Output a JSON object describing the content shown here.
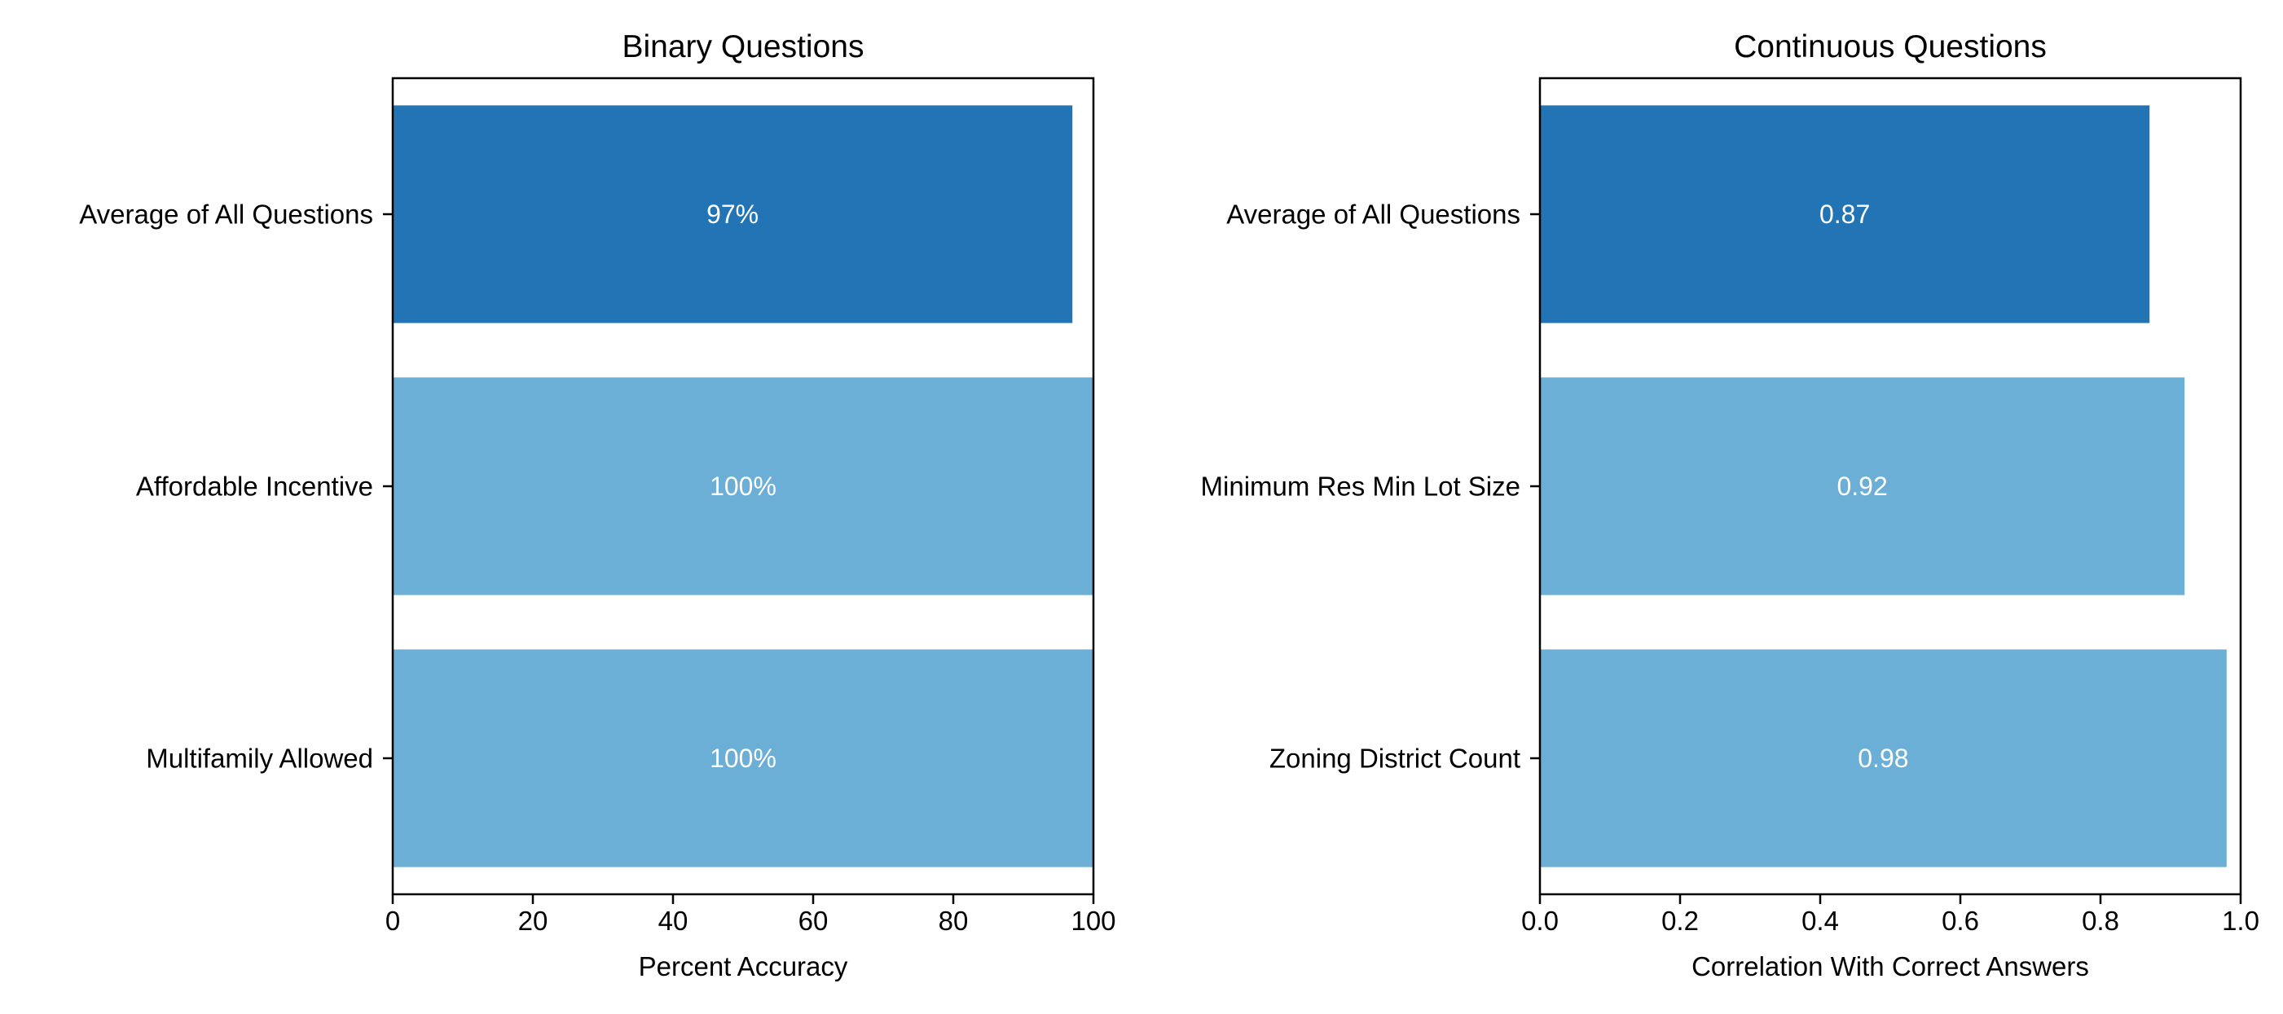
{
  "chart_data": [
    {
      "type": "bar",
      "orientation": "horizontal",
      "title": "Binary Questions",
      "xlabel": "Percent Accuracy",
      "ylabel": "",
      "xlim": [
        0,
        100
      ],
      "xticks": [
        "0",
        "20",
        "40",
        "60",
        "80",
        "100"
      ],
      "categories": [
        "Average of All Questions",
        "Affordable Incentive",
        "Multifamily Allowed"
      ],
      "values": [
        97,
        100,
        100
      ],
      "data_labels": [
        "97%",
        "100%",
        "100%"
      ],
      "bar_colors": [
        "#2274B5",
        "#6BAED6",
        "#6BAED6"
      ],
      "grid": false
    },
    {
      "type": "bar",
      "orientation": "horizontal",
      "title": "Continuous Questions",
      "xlabel": "Correlation With Correct Answers",
      "ylabel": "",
      "xlim": [
        0,
        1
      ],
      "xticks": [
        "0.0",
        "0.2",
        "0.4",
        "0.6",
        "0.8",
        "1.0"
      ],
      "categories": [
        "Average of All Questions",
        "Minimum Res Min Lot Size",
        "Zoning District Count"
      ],
      "values": [
        0.87,
        0.92,
        0.98
      ],
      "data_labels": [
        "0.87",
        "0.92",
        "0.98"
      ],
      "bar_colors": [
        "#2274B5",
        "#6BAED6",
        "#6BAED6"
      ],
      "grid": false
    }
  ]
}
